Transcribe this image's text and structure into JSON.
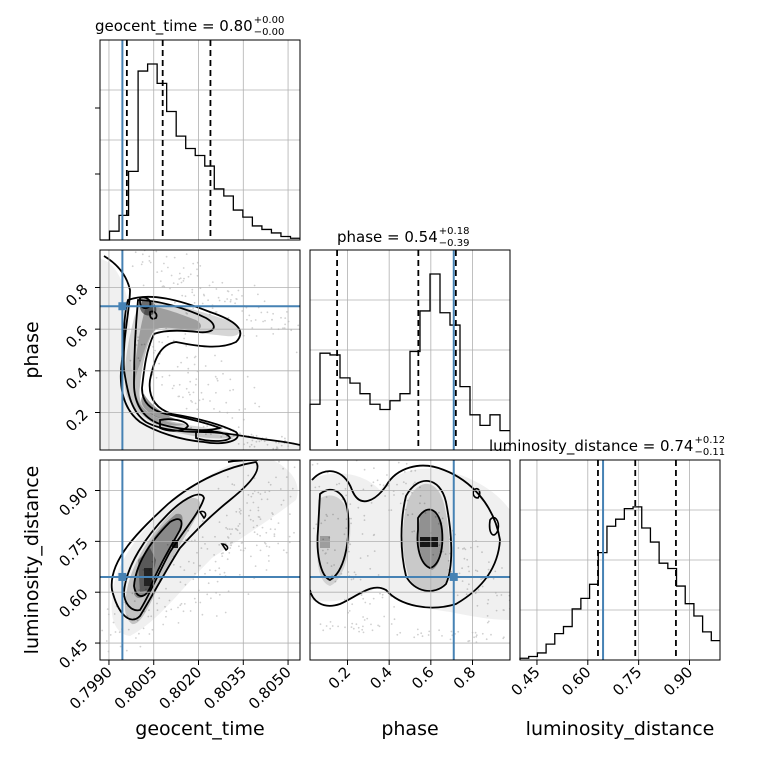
{
  "chart_data": {
    "type": "corner",
    "parameters": [
      "geocent_time",
      "phase",
      "luminosity_distance"
    ],
    "truths": {
      "geocent_time": 0.79945,
      "phase": 0.71,
      "luminosity_distance": 0.645
    },
    "colors": {
      "truth": "#4682b4",
      "hist": "#000000",
      "grid": "#b0b0b0"
    },
    "titles": [
      {
        "param": "geocent_time",
        "text": "geocent_time = 0.80",
        "plus": "+0.00",
        "minus": "−0.00"
      },
      {
        "param": "phase",
        "text": "phase = 0.54",
        "plus": "+0.18",
        "minus": "−0.39"
      },
      {
        "param": "luminosity_distance",
        "text": "luminosity_distance = 0.74",
        "plus": "+0.12",
        "minus": "−0.11"
      }
    ],
    "axis_labels": {
      "geocent_time": "geocent_time",
      "phase": "phase",
      "luminosity_distance": "luminosity_distance"
    },
    "ranges": {
      "geocent_time": [
        0.7987,
        0.8054
      ],
      "phase": [
        0.02,
        0.98
      ],
      "luminosity_distance": [
        0.4,
        0.99
      ]
    },
    "ticks": {
      "geocent_time": [
        {
          "value": 0.799,
          "label": "0.7990"
        },
        {
          "value": 0.8005,
          "label": "0.8005"
        },
        {
          "value": 0.802,
          "label": "0.8020"
        },
        {
          "value": 0.8035,
          "label": "0.8035"
        },
        {
          "value": 0.805,
          "label": "0.8050"
        }
      ],
      "phase": [
        {
          "value": 0.2,
          "label": "0.2"
        },
        {
          "value": 0.4,
          "label": "0.4"
        },
        {
          "value": 0.6,
          "label": "0.6"
        },
        {
          "value": 0.8,
          "label": "0.8"
        }
      ],
      "luminosity_distance": [
        {
          "value": 0.45,
          "label": "0.45"
        },
        {
          "value": 0.6,
          "label": "0.60"
        },
        {
          "value": 0.75,
          "label": "0.75"
        },
        {
          "value": 0.9,
          "label": "0.90"
        }
      ]
    },
    "quantiles": {
      "geocent_time": [
        0.7996,
        0.8008,
        0.8024
      ],
      "phase": [
        0.15,
        0.54,
        0.72
      ],
      "luminosity_distance": [
        0.63,
        0.74,
        0.86
      ]
    },
    "histograms": {
      "geocent_time": [
        0,
        5,
        14,
        39,
        96,
        100,
        89,
        73,
        59,
        52,
        48,
        42,
        29,
        25,
        17,
        13,
        8,
        6,
        4,
        2,
        1
      ],
      "phase": [
        26,
        55,
        54,
        41,
        38,
        32,
        26,
        23,
        28,
        32,
        56,
        79,
        100,
        78,
        71,
        36,
        20,
        14,
        20,
        11
      ],
      "luminosity_distance": [
        1,
        2,
        4,
        9,
        15,
        19,
        29,
        35,
        43,
        61,
        76,
        80,
        86,
        87,
        75,
        67,
        55,
        52,
        42,
        32,
        25,
        16,
        11
      ]
    },
    "scatter_2d": {
      "phase_vs_geocent_time": {
        "x": 0.79945,
        "y": 0.71
      },
      "luminosity_distance_vs_geocent_time": {
        "x": 0.79945,
        "y": 0.645
      },
      "luminosity_distance_vs_phase": {
        "x": 0.71,
        "y": 0.645
      }
    }
  }
}
